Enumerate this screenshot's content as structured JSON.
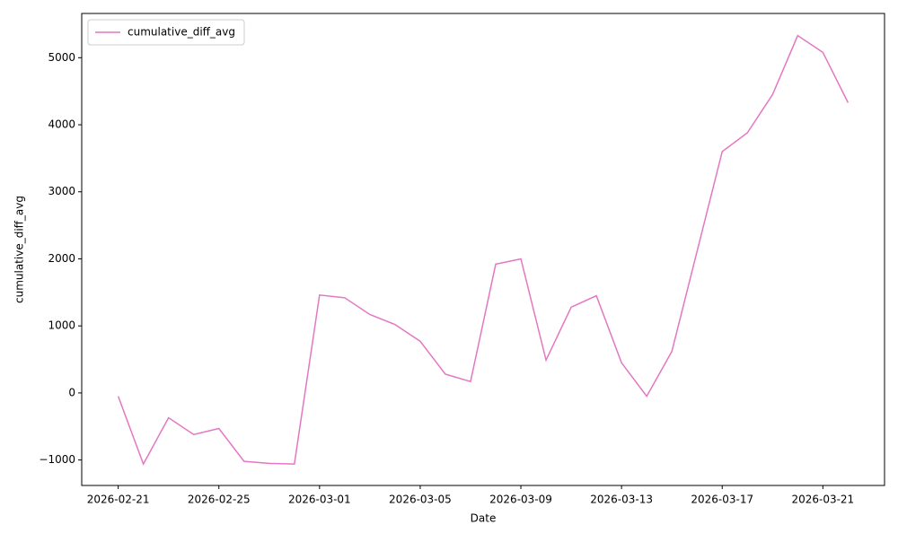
{
  "chart_data": {
    "type": "line",
    "xlabel": "Date",
    "ylabel": "cumulative_diff_avg",
    "x": [
      "2026-02-21",
      "2026-02-22",
      "2026-02-23",
      "2026-02-24",
      "2026-02-25",
      "2026-02-26",
      "2026-02-27",
      "2026-02-28",
      "2026-03-01",
      "2026-03-02",
      "2026-03-03",
      "2026-03-04",
      "2026-03-05",
      "2026-03-06",
      "2026-03-07",
      "2026-03-08",
      "2026-03-09",
      "2026-03-10",
      "2026-03-11",
      "2026-03-12",
      "2026-03-13",
      "2026-03-14",
      "2026-03-15",
      "2026-03-16",
      "2026-03-17",
      "2026-03-18",
      "2026-03-19",
      "2026-03-20",
      "2026-03-21",
      "2026-03-22"
    ],
    "series": [
      {
        "name": "cumulative_diff_avg",
        "color": "#e377c2",
        "values": [
          -50,
          -1060,
          -370,
          -620,
          -530,
          -1020,
          -1050,
          -1060,
          1460,
          1420,
          1170,
          1020,
          770,
          280,
          170,
          1920,
          2000,
          490,
          1280,
          1450,
          450,
          -50,
          620,
          2110,
          3600,
          3880,
          4450,
          5330,
          5080,
          4330
        ]
      }
    ],
    "xticks": [
      "2026-02-21",
      "2026-02-25",
      "2026-03-01",
      "2026-03-05",
      "2026-03-09",
      "2026-03-13",
      "2026-03-17",
      "2026-03-21"
    ],
    "ylim": [
      -1380,
      5660
    ],
    "yticks": [
      {
        "value": -1000,
        "label": "−1000"
      },
      0,
      1000,
      2000,
      3000,
      4000,
      5000
    ],
    "legend": "upper left"
  }
}
